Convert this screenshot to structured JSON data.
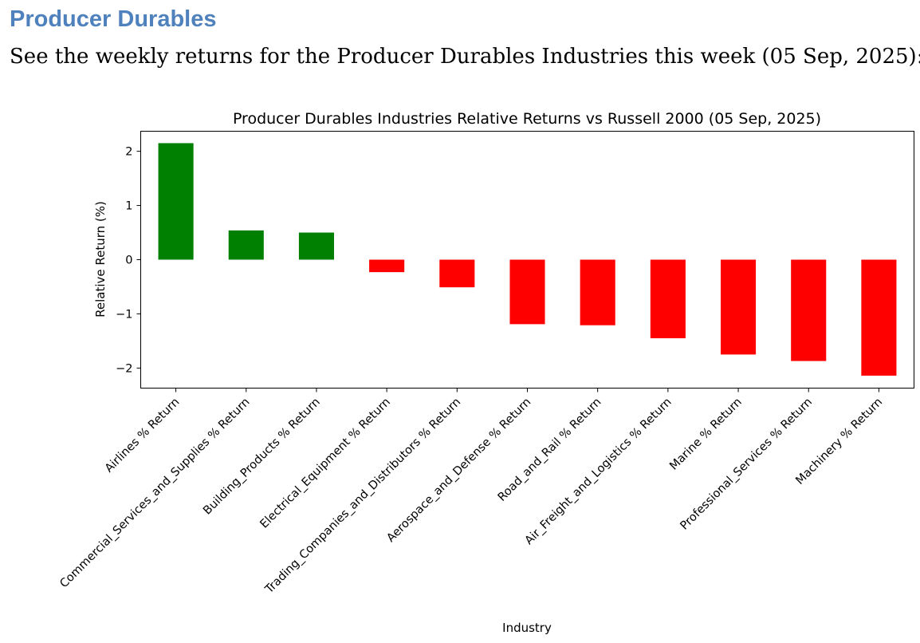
{
  "document": {
    "heading": "Producer Durables",
    "intro": "See the weekly returns for the Producer Durables Industries this week (05 Sep, 2025):"
  },
  "colors": {
    "heading": "#4f81bd",
    "positive": "#008000",
    "negative": "#ff0000"
  },
  "chart_data": {
    "type": "bar",
    "title": "Producer Durables Industries Relative Returns vs Russell 2000 (05 Sep, 2025)",
    "xlabel": "Industry",
    "ylabel": "Relative Return (%)",
    "ylim": [
      -2.37,
      2.37
    ],
    "yticks": [
      2,
      1,
      0,
      -1,
      -2
    ],
    "ytick_labels": [
      "2",
      "1",
      "0",
      "−1",
      "−2"
    ],
    "grid": false,
    "legend": "none",
    "categories": [
      "Airlines % Return",
      "Commercial_Services_and_Supplies % Return",
      "Building_Products % Return",
      "Electrical_Equipment % Return",
      "Trading_Companies_and_Distributors % Return",
      "Aerospace_and_Defense % Return",
      "Road_and_Rail % Return",
      "Air_Freight_and_Logistics % Return",
      "Marine % Return",
      "Professional_Services % Return",
      "Machinery % Return"
    ],
    "values": [
      2.15,
      0.54,
      0.5,
      -0.23,
      -0.51,
      -1.19,
      -1.21,
      -1.45,
      -1.75,
      -1.87,
      -2.14
    ]
  }
}
